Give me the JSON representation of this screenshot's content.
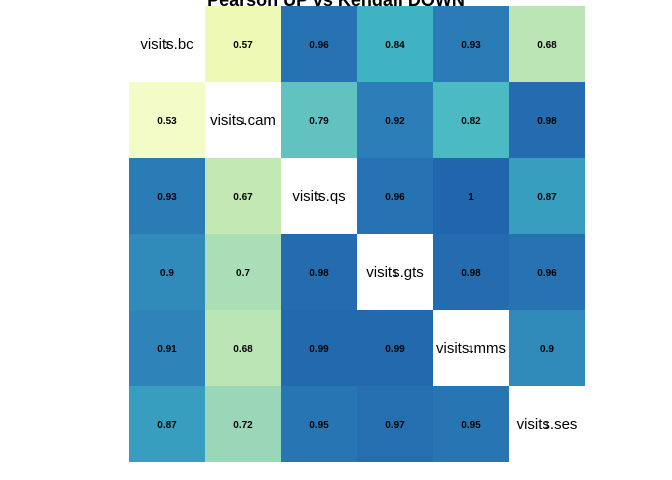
{
  "chart_data": {
    "type": "heatmap",
    "title": "Pearson UP vs Kendall DOWN",
    "variables": [
      "visits.bc",
      "visits.cam",
      "visits.qs",
      "visits.gts",
      "visits.mms",
      "visits.ses"
    ],
    "diagonal_value": "1",
    "matrix": [
      [
        null,
        0.57,
        0.96,
        0.84,
        0.93,
        0.68
      ],
      [
        0.53,
        null,
        0.79,
        0.92,
        0.82,
        0.98
      ],
      [
        0.93,
        0.67,
        null,
        0.96,
        1,
        0.87
      ],
      [
        0.9,
        0.7,
        0.98,
        null,
        0.98,
        0.96
      ],
      [
        0.91,
        0.68,
        0.99,
        0.99,
        null,
        0.9
      ],
      [
        0.87,
        0.72,
        0.95,
        0.97,
        0.95,
        null
      ]
    ],
    "color_scale": {
      "name": "YlGnBu",
      "domain": [
        0.5,
        1.0
      ],
      "stops": [
        "#f7fcd2",
        "#edf8b1",
        "#c7e9b4",
        "#7fcdbb",
        "#41b6c4",
        "#2c7fb8",
        "#2166ac"
      ]
    },
    "diagonal_color": "#ffffff",
    "grid": false,
    "legend": "none"
  }
}
